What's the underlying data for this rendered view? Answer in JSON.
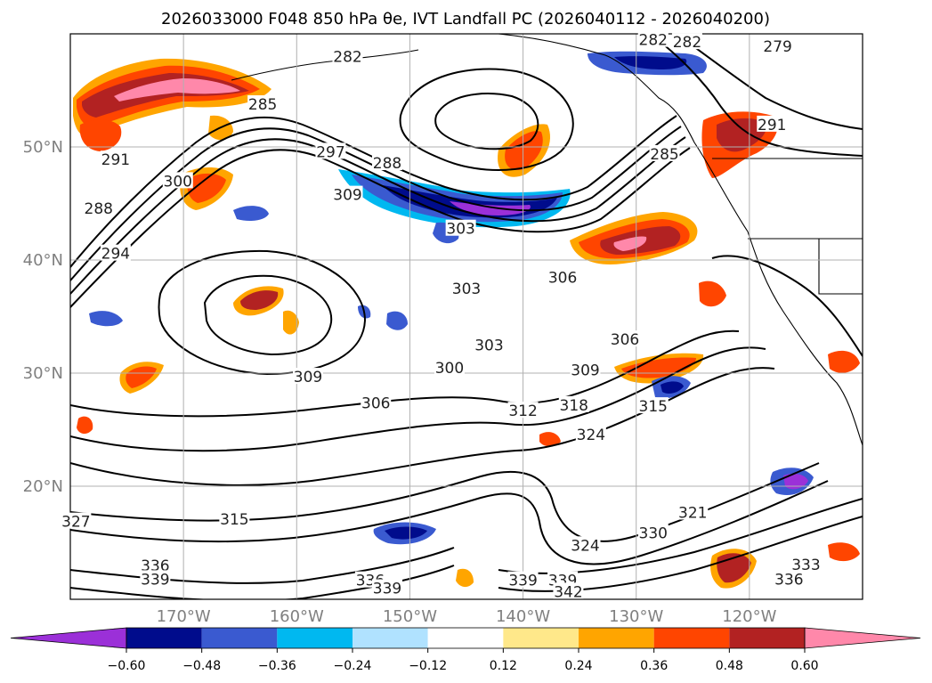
{
  "title": "2026033000 F048 850 hPa θe, IVT Landfall PC (2026040112 - 2026040200)",
  "chart_data": {
    "type": "contour-map",
    "title": "2026033000 F048 850 hPa θe, IVT Landfall PC (2026040112 - 2026040200)",
    "projection": "plate-carree",
    "lon_range": [
      -180,
      -110
    ],
    "lat_range": [
      10,
      60
    ],
    "grid": true,
    "lon_ticks": [
      {
        "lon": -170,
        "label": "170°W"
      },
      {
        "lon": -160,
        "label": "160°W"
      },
      {
        "lon": -150,
        "label": "150°W"
      },
      {
        "lon": -140,
        "label": "140°W"
      },
      {
        "lon": -130,
        "label": "130°W"
      },
      {
        "lon": -120,
        "label": "120°W"
      }
    ],
    "lat_ticks": [
      {
        "lat": 20,
        "label": "20°N"
      },
      {
        "lat": 30,
        "label": "30°N"
      },
      {
        "lat": 40,
        "label": "40°N"
      },
      {
        "lat": 50,
        "label": "50°N"
      }
    ],
    "colorbar": {
      "orientation": "horizontal",
      "extend": "both",
      "boundaries": [
        -0.6,
        -0.48,
        -0.36,
        -0.24,
        -0.12,
        0.12,
        0.24,
        0.36,
        0.48,
        0.6
      ],
      "tick_labels": [
        "−0.60",
        "−0.48",
        "−0.36",
        "−0.24",
        "−0.12",
        "0.12",
        "0.24",
        "0.36",
        "0.48",
        "0.60"
      ],
      "colors": [
        "#9b30d8",
        "#000c8c",
        "#3a5ad0",
        "#00b8f0",
        "#b0e2ff",
        "#ffffff",
        "#ffe88a",
        "#ffa500",
        "#ff4500",
        "#b22222",
        "#ff88aa"
      ]
    },
    "contour_labels": [
      {
        "text": "282",
        "lon": -155.5,
        "lat": 57.9
      },
      {
        "text": "282",
        "lon": -128.5,
        "lat": 59.4
      },
      {
        "text": "282",
        "lon": -125.5,
        "lat": 59.2
      },
      {
        "text": "279",
        "lon": -117.5,
        "lat": 58.8
      },
      {
        "text": "285",
        "lon": -163.0,
        "lat": 53.7
      },
      {
        "text": "291",
        "lon": -118.0,
        "lat": 51.9
      },
      {
        "text": "291",
        "lon": -176.0,
        "lat": 48.8
      },
      {
        "text": "297",
        "lon": -157.0,
        "lat": 49.5
      },
      {
        "text": "288",
        "lon": -152.0,
        "lat": 48.5
      },
      {
        "text": "285",
        "lon": -127.5,
        "lat": 49.3
      },
      {
        "text": "300",
        "lon": -170.5,
        "lat": 46.9
      },
      {
        "text": "288",
        "lon": -177.5,
        "lat": 44.5
      },
      {
        "text": "309",
        "lon": -155.5,
        "lat": 45.7
      },
      {
        "text": "303",
        "lon": -145.5,
        "lat": 42.7
      },
      {
        "text": "294",
        "lon": -176.0,
        "lat": 40.5
      },
      {
        "text": "306",
        "lon": -136.5,
        "lat": 38.4
      },
      {
        "text": "303",
        "lon": -145.0,
        "lat": 37.4
      },
      {
        "text": "303",
        "lon": -143.0,
        "lat": 32.4
      },
      {
        "text": "309",
        "lon": -159.0,
        "lat": 29.6
      },
      {
        "text": "306",
        "lon": -131.0,
        "lat": 32.9
      },
      {
        "text": "300",
        "lon": -146.5,
        "lat": 30.4
      },
      {
        "text": "309",
        "lon": -134.5,
        "lat": 30.2
      },
      {
        "text": "306",
        "lon": -153.0,
        "lat": 27.3
      },
      {
        "text": "312",
        "lon": -140.0,
        "lat": 26.6
      },
      {
        "text": "318",
        "lon": -135.5,
        "lat": 27.1
      },
      {
        "text": "315",
        "lon": -128.5,
        "lat": 27.0
      },
      {
        "text": "324",
        "lon": -134.0,
        "lat": 24.5
      },
      {
        "text": "315",
        "lon": -165.5,
        "lat": 17.0
      },
      {
        "text": "327",
        "lon": -179.5,
        "lat": 16.8
      },
      {
        "text": "321",
        "lon": -125.0,
        "lat": 17.6
      },
      {
        "text": "330",
        "lon": -128.5,
        "lat": 15.8
      },
      {
        "text": "324",
        "lon": -134.5,
        "lat": 14.7
      },
      {
        "text": "336",
        "lon": -172.5,
        "lat": 12.9
      },
      {
        "text": "339",
        "lon": -172.5,
        "lat": 11.7
      },
      {
        "text": "336",
        "lon": -153.5,
        "lat": 11.6
      },
      {
        "text": "339",
        "lon": -152.0,
        "lat": 10.9
      },
      {
        "text": "339",
        "lon": -140.0,
        "lat": 11.6
      },
      {
        "text": "339",
        "lon": -136.5,
        "lat": 11.6
      },
      {
        "text": "342",
        "lon": -136.0,
        "lat": 10.6
      },
      {
        "text": "333",
        "lon": -115.0,
        "lat": 13.0
      },
      {
        "text": "336",
        "lon": -116.5,
        "lat": 11.7
      }
    ]
  }
}
